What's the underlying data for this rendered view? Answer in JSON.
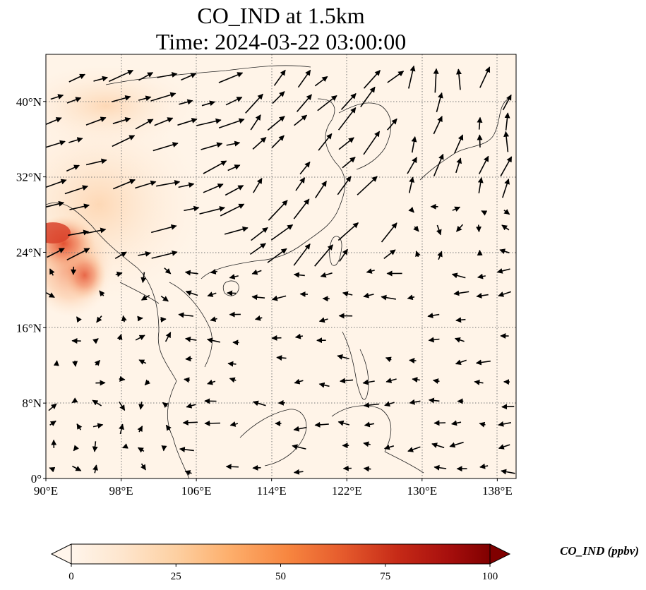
{
  "title": {
    "line1": "CO_IND at 1.5km",
    "line2": "Time: 2024-03-22 03:00:00"
  },
  "map": {
    "lon_range": [
      90,
      140
    ],
    "lat_range": [
      0,
      45
    ],
    "lon_ticks": [
      {
        "value": 90,
        "label": "90°E"
      },
      {
        "value": 98,
        "label": "98°E"
      },
      {
        "value": 106,
        "label": "106°E"
      },
      {
        "value": 114,
        "label": "114°E"
      },
      {
        "value": 122,
        "label": "122°E"
      },
      {
        "value": 130,
        "label": "130°E"
      },
      {
        "value": 138,
        "label": "138°E"
      }
    ],
    "lat_ticks": [
      {
        "value": 0,
        "label": "0°"
      },
      {
        "value": 8,
        "label": "8°N"
      },
      {
        "value": 16,
        "label": "16°N"
      },
      {
        "value": 24,
        "label": "24°N"
      },
      {
        "value": 32,
        "label": "32°N"
      },
      {
        "value": 40,
        "label": "40°N"
      }
    ],
    "gridlines": true,
    "field_hotspots": [
      {
        "lon": 91.5,
        "lat": 24.5,
        "value": 65
      },
      {
        "lon": 94.0,
        "lat": 21.5,
        "value": 55
      },
      {
        "lon": 92.0,
        "lat": 27.0,
        "value": 45
      },
      {
        "lon": 96.5,
        "lat": 23.0,
        "value": 25
      },
      {
        "lon": 100.5,
        "lat": 34.0,
        "value": 12
      },
      {
        "lon": 96.0,
        "lat": 41.0,
        "value": 10
      }
    ],
    "wind_vectors_note_only": true
  },
  "colorbar": {
    "label": "CO_IND (ppbv)",
    "min": 0,
    "max": 100,
    "extend": "both",
    "colormap": [
      "#fff5eb",
      "#fee6ce",
      "#fdd0a2",
      "#fdae6b",
      "#fd8d3c",
      "#f16913",
      "#d94801",
      "#a63603",
      "#7f2704"
    ],
    "ticks": [
      {
        "value": 0,
        "label": "0"
      },
      {
        "value": 25,
        "label": "25"
      },
      {
        "value": 50,
        "label": "50"
      },
      {
        "value": 75,
        "label": "75"
      },
      {
        "value": 100,
        "label": "100"
      }
    ]
  }
}
